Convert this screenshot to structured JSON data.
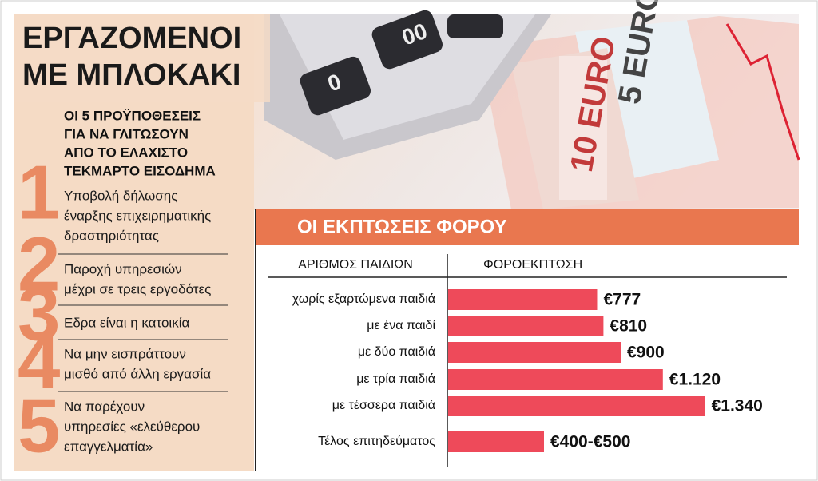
{
  "header": {
    "title_lines": [
      "ΕΡΓΑΖΟΜΕΝΟΙ",
      "ΜΕ ΜΠΛΟΚΑΚΙ"
    ]
  },
  "conditions": {
    "heading_lines": [
      "ΟΙ 5 ΠΡΟΫΠΟΘΕΣΕΙΣ",
      "ΓΙΑ ΝΑ ΓΛΙΤΩΣΟΥΝ",
      "ΑΠΟ ΤΟ ΕΛΑΧΙΣΤΟ",
      "ΤΕΚΜΑΡΤΟ ΕΙΣΟΔΗΜΑ"
    ],
    "items": [
      {
        "number": "1",
        "lines": [
          "Υποβολή δήλωσης",
          "έναρξης επιχειρηματικής",
          "δραστηριότητας"
        ]
      },
      {
        "number": "2",
        "lines": [
          "Παροχή υπηρεσιών",
          "μέχρι σε τρεις εργοδότες"
        ]
      },
      {
        "number": "3",
        "lines": [
          "Εδρα είναι η κατοικία"
        ]
      },
      {
        "number": "4",
        "lines": [
          "Να μην εισπράττουν",
          "μισθό από άλλη εργασία"
        ]
      },
      {
        "number": "5",
        "lines": [
          "Να παρέχουν",
          "υπηρεσίες «ελεύθερου",
          "επαγγελματία»"
        ]
      }
    ]
  },
  "chart_data": {
    "type": "bar",
    "orientation": "horizontal",
    "title": "ΟΙ ΕΚΠΤΩΣΕΙΣ ΦΟΡΟΥ",
    "category_header": "ΑΡΙΘΜΟΣ ΠΑΙΔΙΩΝ",
    "value_header": "ΦΟΡΟΕΚΠΤΩΣΗ",
    "categories": [
      "χωρίς εξαρτώμενα παιδιά",
      "με ένα παιδί",
      "με δύο παιδιά",
      "με τρία παιδιά",
      "με τέσσερα παιδιά"
    ],
    "values": [
      777,
      810,
      900,
      1120,
      1340
    ],
    "value_labels": [
      "€777",
      "€810",
      "€900",
      "€1.120",
      "€1.340"
    ],
    "color": "#ee4a5a",
    "xlim": [
      0,
      1800
    ],
    "fee": {
      "label": "Τέλος επιτηδεύματος",
      "range": [
        400,
        500
      ],
      "value_label": "€400-€500"
    }
  }
}
